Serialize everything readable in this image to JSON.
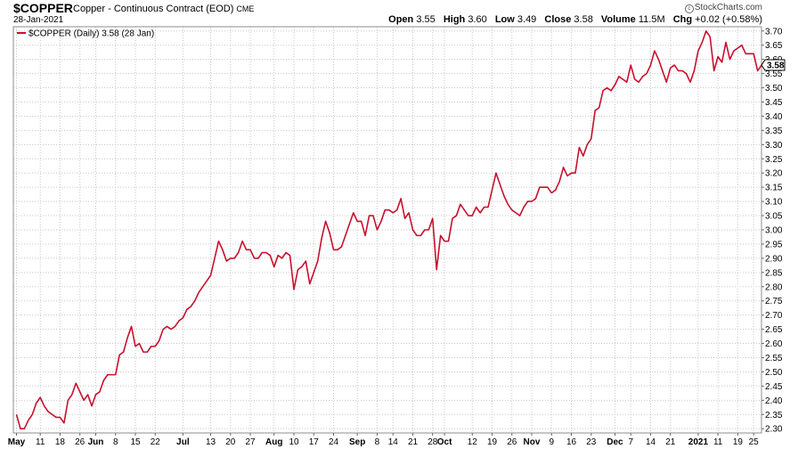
{
  "header": {
    "symbol": "$COPPER",
    "description": "Copper - Continuous Contract (EOD)",
    "exchange": "CME",
    "date": "28-Jan-2021",
    "brand": "StockCharts.com",
    "ohlc": {
      "open_label": "Open",
      "open": "3.55",
      "high_label": "High",
      "high": "3.60",
      "low_label": "Low",
      "low": "3.49",
      "close_label": "Close",
      "close": "3.58",
      "volume_label": "Volume",
      "volume": "11.5M",
      "chg_label": "Chg",
      "chg": "+0.02 (+0.58%)"
    }
  },
  "legend": {
    "label": "$COPPER (Daily) 3.58 (28 Jan)"
  },
  "colors": {
    "line": "#c8102e",
    "grid": "#c8c8c8",
    "text": "#000000"
  },
  "chart_data": {
    "type": "line",
    "series": [
      {
        "name": "$COPPER (Daily)",
        "values": [
          2.35,
          2.3,
          2.3,
          2.33,
          2.35,
          2.39,
          2.41,
          2.38,
          2.36,
          2.35,
          2.34,
          2.34,
          2.32,
          2.4,
          2.42,
          2.46,
          2.43,
          2.4,
          2.42,
          2.38,
          2.42,
          2.43,
          2.47,
          2.49,
          2.49,
          2.49,
          2.56,
          2.57,
          2.62,
          2.66,
          2.59,
          2.6,
          2.57,
          2.57,
          2.59,
          2.59,
          2.61,
          2.65,
          2.66,
          2.65,
          2.66,
          2.68,
          2.69,
          2.72,
          2.73,
          2.75,
          2.78,
          2.8,
          2.82,
          2.84,
          2.9,
          2.96,
          2.93,
          2.89,
          2.9,
          2.9,
          2.92,
          2.96,
          2.93,
          2.93,
          2.9,
          2.9,
          2.92,
          2.92,
          2.91,
          2.87,
          2.91,
          2.9,
          2.92,
          2.91,
          2.79,
          2.86,
          2.87,
          2.89,
          2.81,
          2.85,
          2.89,
          2.97,
          3.03,
          2.99,
          2.93,
          2.93,
          2.94,
          2.98,
          3.02,
          3.06,
          3.03,
          3.03,
          2.98,
          3.05,
          3.05,
          3.0,
          3.03,
          3.07,
          3.07,
          3.06,
          3.07,
          3.11,
          3.04,
          3.06,
          3.0,
          2.98,
          2.98,
          3.0,
          3.0,
          3.04,
          2.86,
          2.98,
          2.96,
          2.96,
          3.04,
          3.05,
          3.09,
          3.07,
          3.05,
          3.05,
          3.08,
          3.06,
          3.08,
          3.08,
          3.14,
          3.2,
          3.16,
          3.12,
          3.09,
          3.07,
          3.06,
          3.05,
          3.08,
          3.1,
          3.1,
          3.11,
          3.15,
          3.15,
          3.15,
          3.13,
          3.14,
          3.17,
          3.22,
          3.19,
          3.2,
          3.2,
          3.29,
          3.26,
          3.3,
          3.32,
          3.42,
          3.43,
          3.49,
          3.5,
          3.49,
          3.51,
          3.54,
          3.53,
          3.52,
          3.58,
          3.53,
          3.52,
          3.54,
          3.55,
          3.58,
          3.63,
          3.6,
          3.56,
          3.52,
          3.57,
          3.58,
          3.56,
          3.56,
          3.55,
          3.52,
          3.56,
          3.63,
          3.66,
          3.7,
          3.68,
          3.56,
          3.61,
          3.59,
          3.66,
          3.6,
          3.63,
          3.64,
          3.65,
          3.62,
          3.62,
          3.62,
          3.56,
          3.58
        ]
      }
    ],
    "last_value": "3.58",
    "y_axis": {
      "position": "right",
      "min": 2.285,
      "max": 3.715,
      "ticks": [
        "2.30",
        "2.35",
        "2.40",
        "2.45",
        "2.50",
        "2.55",
        "2.60",
        "2.65",
        "2.70",
        "2.75",
        "2.80",
        "2.85",
        "2.90",
        "2.95",
        "3.00",
        "3.05",
        "3.10",
        "3.15",
        "3.20",
        "3.25",
        "3.30",
        "3.35",
        "3.40",
        "3.45",
        "3.50",
        "3.55",
        "3.60",
        "3.65",
        "3.70"
      ]
    },
    "x_axis": {
      "ticks": [
        {
          "label": "May",
          "i": 0,
          "bold": true
        },
        {
          "label": "11",
          "i": 6
        },
        {
          "label": "18",
          "i": 11
        },
        {
          "label": "26",
          "i": 16
        },
        {
          "label": "Jun",
          "i": 20,
          "bold": true
        },
        {
          "label": "8",
          "i": 25
        },
        {
          "label": "15",
          "i": 30
        },
        {
          "label": "22",
          "i": 35
        },
        {
          "label": "Jul",
          "i": 42,
          "bold": true
        },
        {
          "label": "13",
          "i": 49
        },
        {
          "label": "20",
          "i": 54
        },
        {
          "label": "27",
          "i": 59
        },
        {
          "label": "Aug",
          "i": 65,
          "bold": true
        },
        {
          "label": "10",
          "i": 70
        },
        {
          "label": "17",
          "i": 75
        },
        {
          "label": "24",
          "i": 80
        },
        {
          "label": "Sep",
          "i": 86,
          "bold": true
        },
        {
          "label": "8",
          "i": 91
        },
        {
          "label": "14",
          "i": 95
        },
        {
          "label": "21",
          "i": 100
        },
        {
          "label": "28",
          "i": 105
        },
        {
          "label": "Oct",
          "i": 108,
          "bold": true
        },
        {
          "label": "12",
          "i": 115
        },
        {
          "label": "19",
          "i": 120
        },
        {
          "label": "26",
          "i": 125
        },
        {
          "label": "Nov",
          "i": 130,
          "bold": true
        },
        {
          "label": "9",
          "i": 135
        },
        {
          "label": "16",
          "i": 140
        },
        {
          "label": "23",
          "i": 145
        },
        {
          "label": "Dec",
          "i": 151,
          "bold": true
        },
        {
          "label": "7",
          "i": 155
        },
        {
          "label": "14",
          "i": 160
        },
        {
          "label": "21",
          "i": 165
        },
        {
          "label": "2021",
          "i": 172,
          "bold": true
        },
        {
          "label": "11",
          "i": 177
        },
        {
          "label": "19",
          "i": 182
        },
        {
          "label": "25",
          "i": 186
        }
      ]
    },
    "grid": true,
    "legend_position": "top-left"
  }
}
